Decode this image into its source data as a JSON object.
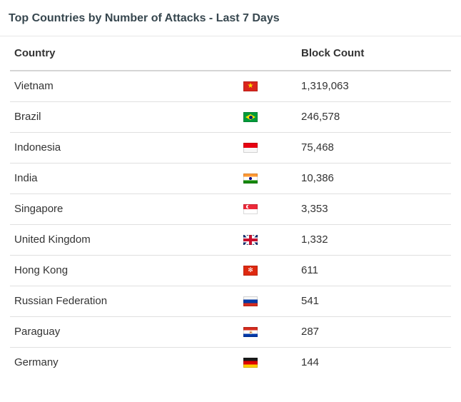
{
  "panel": {
    "title": "Top Countries by Number of Attacks - Last 7 Days"
  },
  "table": {
    "columns": {
      "country": "Country",
      "block_count": "Block Count"
    },
    "rows": [
      {
        "country": "Vietnam",
        "flag": "vn",
        "flag_icon": "flag-vietnam-icon",
        "block_count": "1,319,063"
      },
      {
        "country": "Brazil",
        "flag": "br",
        "flag_icon": "flag-brazil-icon",
        "block_count": "246,578"
      },
      {
        "country": "Indonesia",
        "flag": "id",
        "flag_icon": "flag-indonesia-icon",
        "block_count": "75,468"
      },
      {
        "country": "India",
        "flag": "in",
        "flag_icon": "flag-india-icon",
        "block_count": "10,386"
      },
      {
        "country": "Singapore",
        "flag": "sg",
        "flag_icon": "flag-singapore-icon",
        "block_count": "3,353"
      },
      {
        "country": "United Kingdom",
        "flag": "gb",
        "flag_icon": "flag-united-kingdom-icon",
        "block_count": "1,332"
      },
      {
        "country": "Hong Kong",
        "flag": "hk",
        "flag_icon": "flag-hong-kong-icon",
        "block_count": "611"
      },
      {
        "country": "Russian Federation",
        "flag": "ru",
        "flag_icon": "flag-russian-federation-icon",
        "block_count": "541"
      },
      {
        "country": "Paraguay",
        "flag": "py",
        "flag_icon": "flag-paraguay-icon",
        "block_count": "287"
      },
      {
        "country": "Germany",
        "flag": "de",
        "flag_icon": "flag-germany-icon",
        "block_count": "144"
      }
    ]
  },
  "colors": {
    "background": "#ffffff",
    "title_text": "#37474f",
    "body_text": "#333333",
    "row_divider": "#e0e0e0",
    "header_divider": "#d5d5d5",
    "title_divider": "#e8e8e8"
  }
}
